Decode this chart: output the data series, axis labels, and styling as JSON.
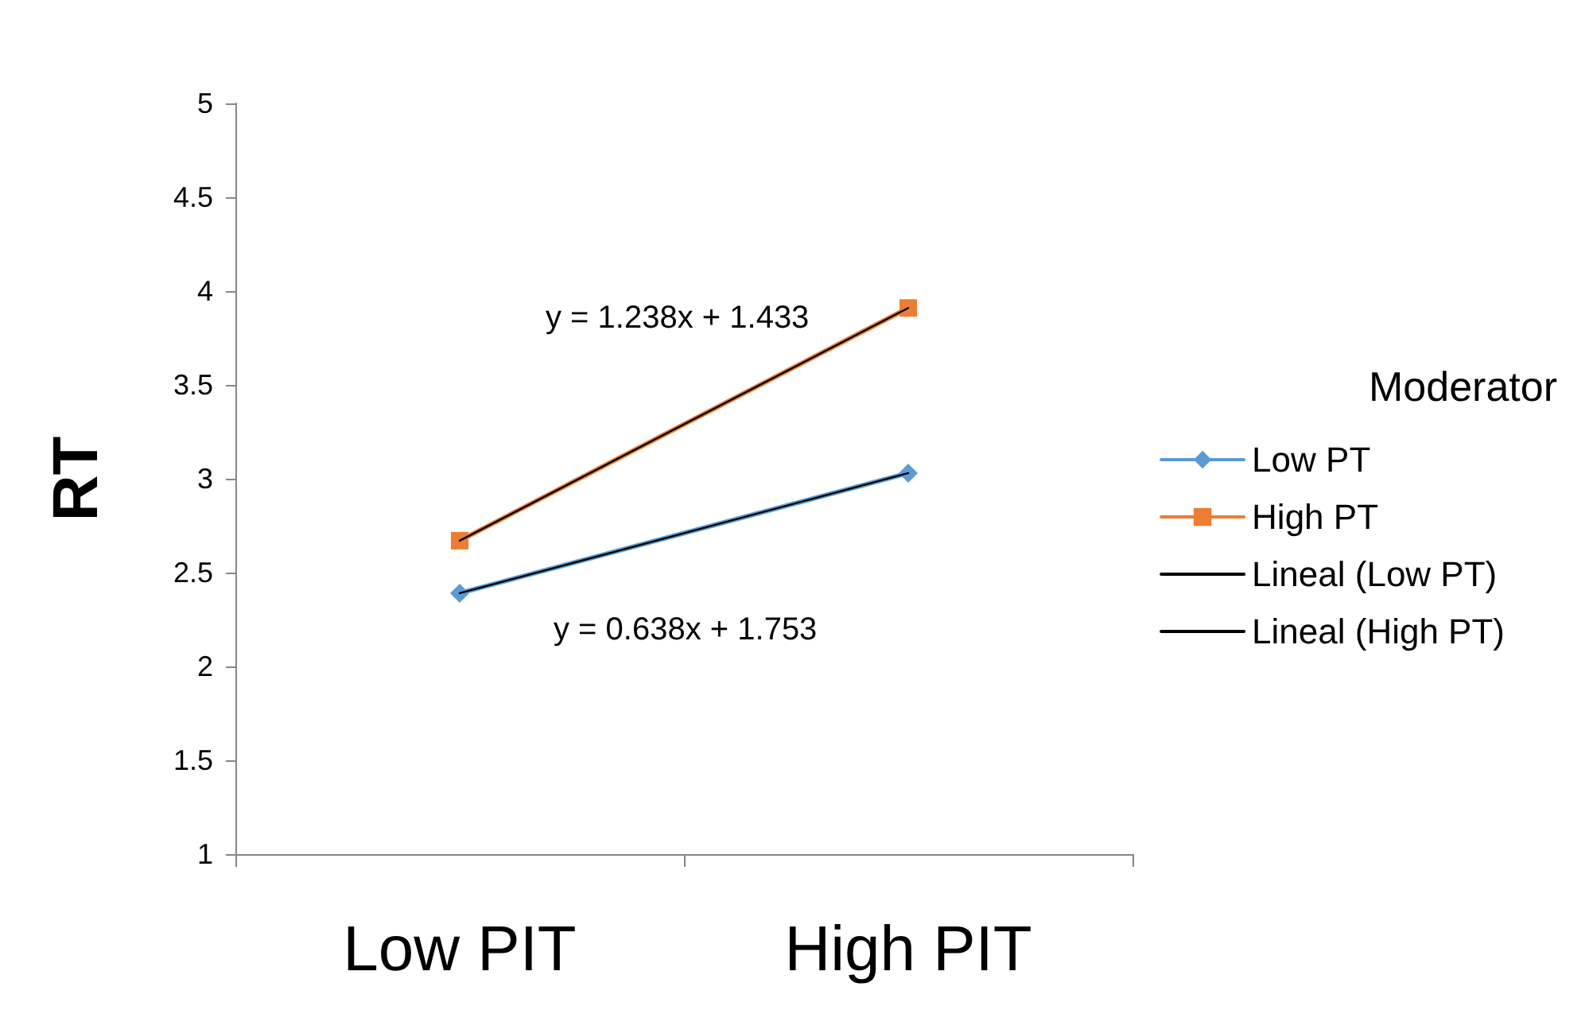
{
  "chart_data": {
    "type": "line",
    "ylabel": "RT",
    "legend_title": "Moderator",
    "categories": [
      "Low PIT",
      "High PIT"
    ],
    "series": [
      {
        "name": "Low PT",
        "color": "#5b9bd5",
        "values": [
          2.39,
          3.03
        ],
        "marker": "diamond"
      },
      {
        "name": "High PT",
        "color": "#ed7d31",
        "values": [
          2.67,
          3.91
        ],
        "marker": "square"
      },
      {
        "name": "Lineal (Low PT)",
        "color": "#000000",
        "values": [
          2.39,
          3.03
        ],
        "x": [
          "Low PIT",
          "High PIT"
        ],
        "marker": "none"
      },
      {
        "name": "Lineal (High PT)",
        "color": "#000000",
        "values": [
          2.67,
          3.91
        ],
        "x": [
          "Low PIT",
          "High PIT"
        ],
        "marker": "none"
      }
    ],
    "annotations": [
      "y = 1.238x + 1.433",
      "y = 0.638x + 1.753"
    ],
    "ylim": [
      1,
      5
    ],
    "yticks": [
      1,
      1.5,
      2,
      2.5,
      3,
      3.5,
      4,
      4.5,
      5
    ],
    "grid": false,
    "legend": "right",
    "line_style": "solid"
  }
}
